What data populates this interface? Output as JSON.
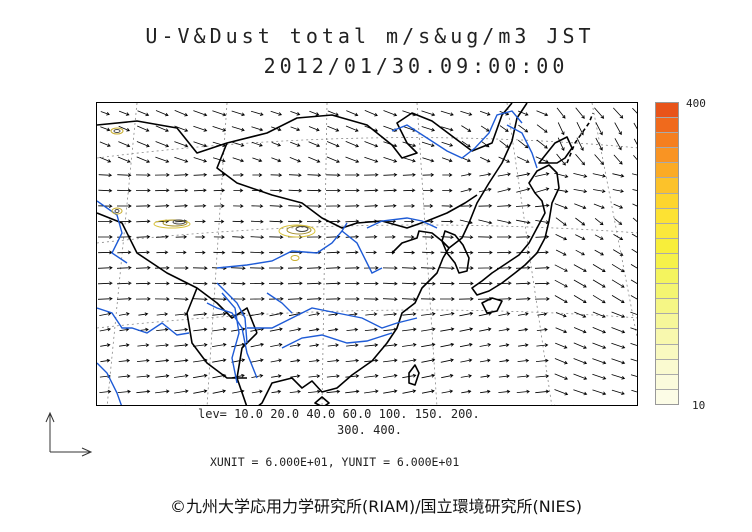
{
  "title": {
    "line1": "U-V&Dust total m/s&ug/m3 JST",
    "line2": "2012/01/30.09:00:00"
  },
  "colorbar": {
    "max_label": "400",
    "min_label": "10",
    "colors": [
      "#e8541a",
      "#f06a1c",
      "#f57f1f",
      "#f99423",
      "#fbab25",
      "#fcc22a",
      "#fdd52e",
      "#fde233",
      "#fbe83c",
      "#f8ee3a",
      "#f6f14a",
      "#f4f45e",
      "#f4f571",
      "#f5f685",
      "#f6f79a",
      "#f8f8ae",
      "#f9f9c0",
      "#fafad0",
      "#fbfbdc",
      "#fcfce6"
    ]
  },
  "levels": {
    "line1": "lev= 10.0 20.0 40.0 60.0 100. 150. 200.",
    "line2": "300. 400."
  },
  "units": "XUNIT = 6.000E+01, YUNIT = 6.000E+01",
  "credit": "©九州大学応用力学研究所(RIAM)/国立環境研究所(NIES)",
  "colors": {
    "river": "#1e5bd6",
    "coast": "#000000",
    "dust": "#d8c23a",
    "arrow": "#000000"
  }
}
